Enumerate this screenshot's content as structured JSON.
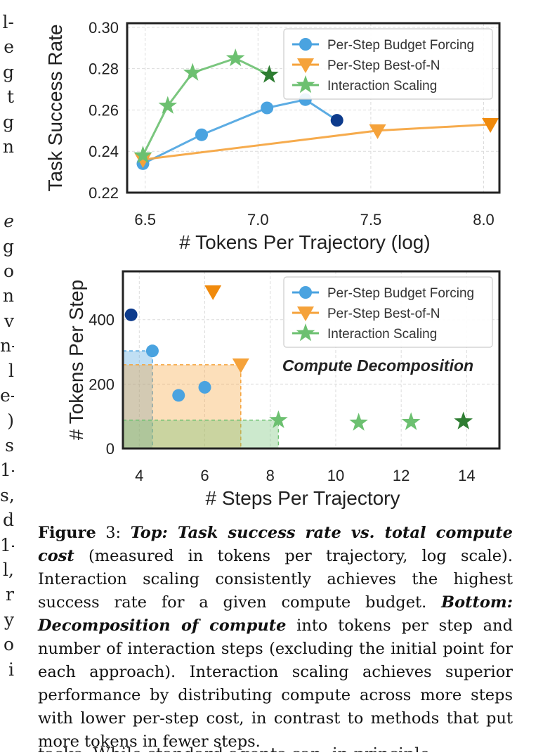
{
  "margin_text": [
    {
      "t": "l-",
      "i": false
    },
    {
      "t": "e",
      "i": false
    },
    {
      "t": "g",
      "i": false
    },
    {
      "t": "t",
      "i": false
    },
    {
      "t": "g",
      "i": false
    },
    {
      "t": "n",
      "i": false
    },
    {
      "t": "",
      "i": false
    },
    {
      "t": "",
      "i": false
    },
    {
      "t": "e",
      "i": true
    },
    {
      "t": "g",
      "i": false
    },
    {
      "t": "o",
      "i": false
    },
    {
      "t": "n",
      "i": false
    },
    {
      "t": "v",
      "i": false
    },
    {
      "t": "n-",
      "i": false
    },
    {
      "t": "l",
      "i": false
    },
    {
      "t": "e-",
      "i": false
    },
    {
      "t": ")",
      "i": false
    },
    {
      "t": "s",
      "i": false
    },
    {
      "t": "1-",
      "i": false
    },
    {
      "t": "s,",
      "i": false
    },
    {
      "t": "d",
      "i": false
    },
    {
      "t": "1-",
      "i": false
    },
    {
      "t": "l,",
      "i": false
    },
    {
      "t": "r",
      "i": false
    },
    {
      "t": "y",
      "i": false
    },
    {
      "t": "o",
      "i": false
    },
    {
      "t": "i",
      "i": false
    }
  ],
  "chart_data": [
    {
      "type": "line",
      "xlabel": "# Tokens Per Trajectory (log)",
      "ylabel": "Task Success Rate",
      "xlim": [
        6.42,
        8.07
      ],
      "ylim": [
        0.22,
        0.302
      ],
      "x_ticks": [
        "6.5",
        "7.0",
        "7.5",
        "8.0"
      ],
      "x_tick_values": [
        6.5,
        7.0,
        7.5,
        8.0
      ],
      "y_ticks": [
        "0.22",
        "0.24",
        "0.26",
        "0.28",
        "0.30"
      ],
      "y_tick_values": [
        0.22,
        0.24,
        0.26,
        0.28,
        0.3
      ],
      "grid": true,
      "legend_position": "top-right",
      "series": [
        {
          "name": "Per-Step Budget Forcing",
          "marker": "circle",
          "color": "#4aa3e0",
          "final_color": "#0d3b8c",
          "x": [
            6.49,
            6.75,
            7.04,
            7.21,
            7.35
          ],
          "y": [
            0.234,
            0.248,
            0.261,
            0.265,
            0.255
          ]
        },
        {
          "name": "Per-Step Best-of-N",
          "marker": "triangle",
          "color": "#f5a23a",
          "final_color": "#f08a0c",
          "x": [
            6.49,
            7.53,
            8.03
          ],
          "y": [
            0.236,
            0.25,
            0.253
          ]
        },
        {
          "name": "Interaction Scaling",
          "marker": "star",
          "color": "#6cc070",
          "final_color": "#2e7d32",
          "x": [
            6.49,
            6.6,
            6.71,
            6.9,
            7.05
          ],
          "y": [
            0.238,
            0.262,
            0.278,
            0.285,
            0.277
          ]
        }
      ]
    },
    {
      "type": "scatter",
      "xlabel": "# Steps Per Trajectory",
      "ylabel": "# Tokens Per Step",
      "xlim": [
        3.5,
        15.0
      ],
      "ylim": [
        0,
        550
      ],
      "x_ticks": [
        "4",
        "6",
        "8",
        "10",
        "12",
        "14"
      ],
      "x_tick_values": [
        4,
        6,
        8,
        10,
        12,
        14
      ],
      "y_ticks": [
        "0",
        "200",
        "400"
      ],
      "y_tick_values": [
        0,
        200,
        400
      ],
      "grid": true,
      "legend_position": "top-right",
      "annotation": "Compute Decomposition",
      "series": [
        {
          "name": "Per-Step Budget Forcing",
          "marker": "circle",
          "color": "#4aa3e0",
          "final_color": "#0d3b8c",
          "x": [
            4.4,
            5.2,
            6.0,
            3.75
          ],
          "y": [
            303,
            165,
            190,
            415
          ]
        },
        {
          "name": "Per-Step Best-of-N",
          "marker": "triangle",
          "color": "#f5a23a",
          "final_color": "#f08a0c",
          "x": [
            7.1,
            6.25
          ],
          "y": [
            260,
            487
          ]
        },
        {
          "name": "Interaction Scaling",
          "marker": "star",
          "color": "#6cc070",
          "final_color": "#2e7d32",
          "x": [
            8.25,
            10.7,
            12.3,
            13.9
          ],
          "y": [
            88,
            80,
            82,
            84
          ]
        }
      ],
      "boxes": [
        {
          "series": "Per-Step Budget Forcing",
          "x": 4.4,
          "y": 303
        },
        {
          "series": "Per-Step Best-of-N",
          "x": 7.1,
          "y": 260
        },
        {
          "series": "Interaction Scaling",
          "x": 8.25,
          "y": 88
        }
      ]
    }
  ],
  "caption": {
    "label": "Figure",
    "number": " 3:",
    "top_label": "Top: Task success rate vs. total compute cost",
    "top_text": " (measured in tokens per trajectory, log scale). Interaction scaling consistently achieves the highest success rate for a given compute budget. ",
    "bottom_label": "Bottom: Decomposition of compute",
    "bottom_text": " into tokens per step and number of interaction steps (excluding the initial point for each approach). Interaction scaling achieves superior performance by distributing compute across more steps with lower per-step cost, in contrast to methods that put more tokens in fewer steps."
  },
  "bottom_line": "tasks. While standard agents can, in principle,"
}
